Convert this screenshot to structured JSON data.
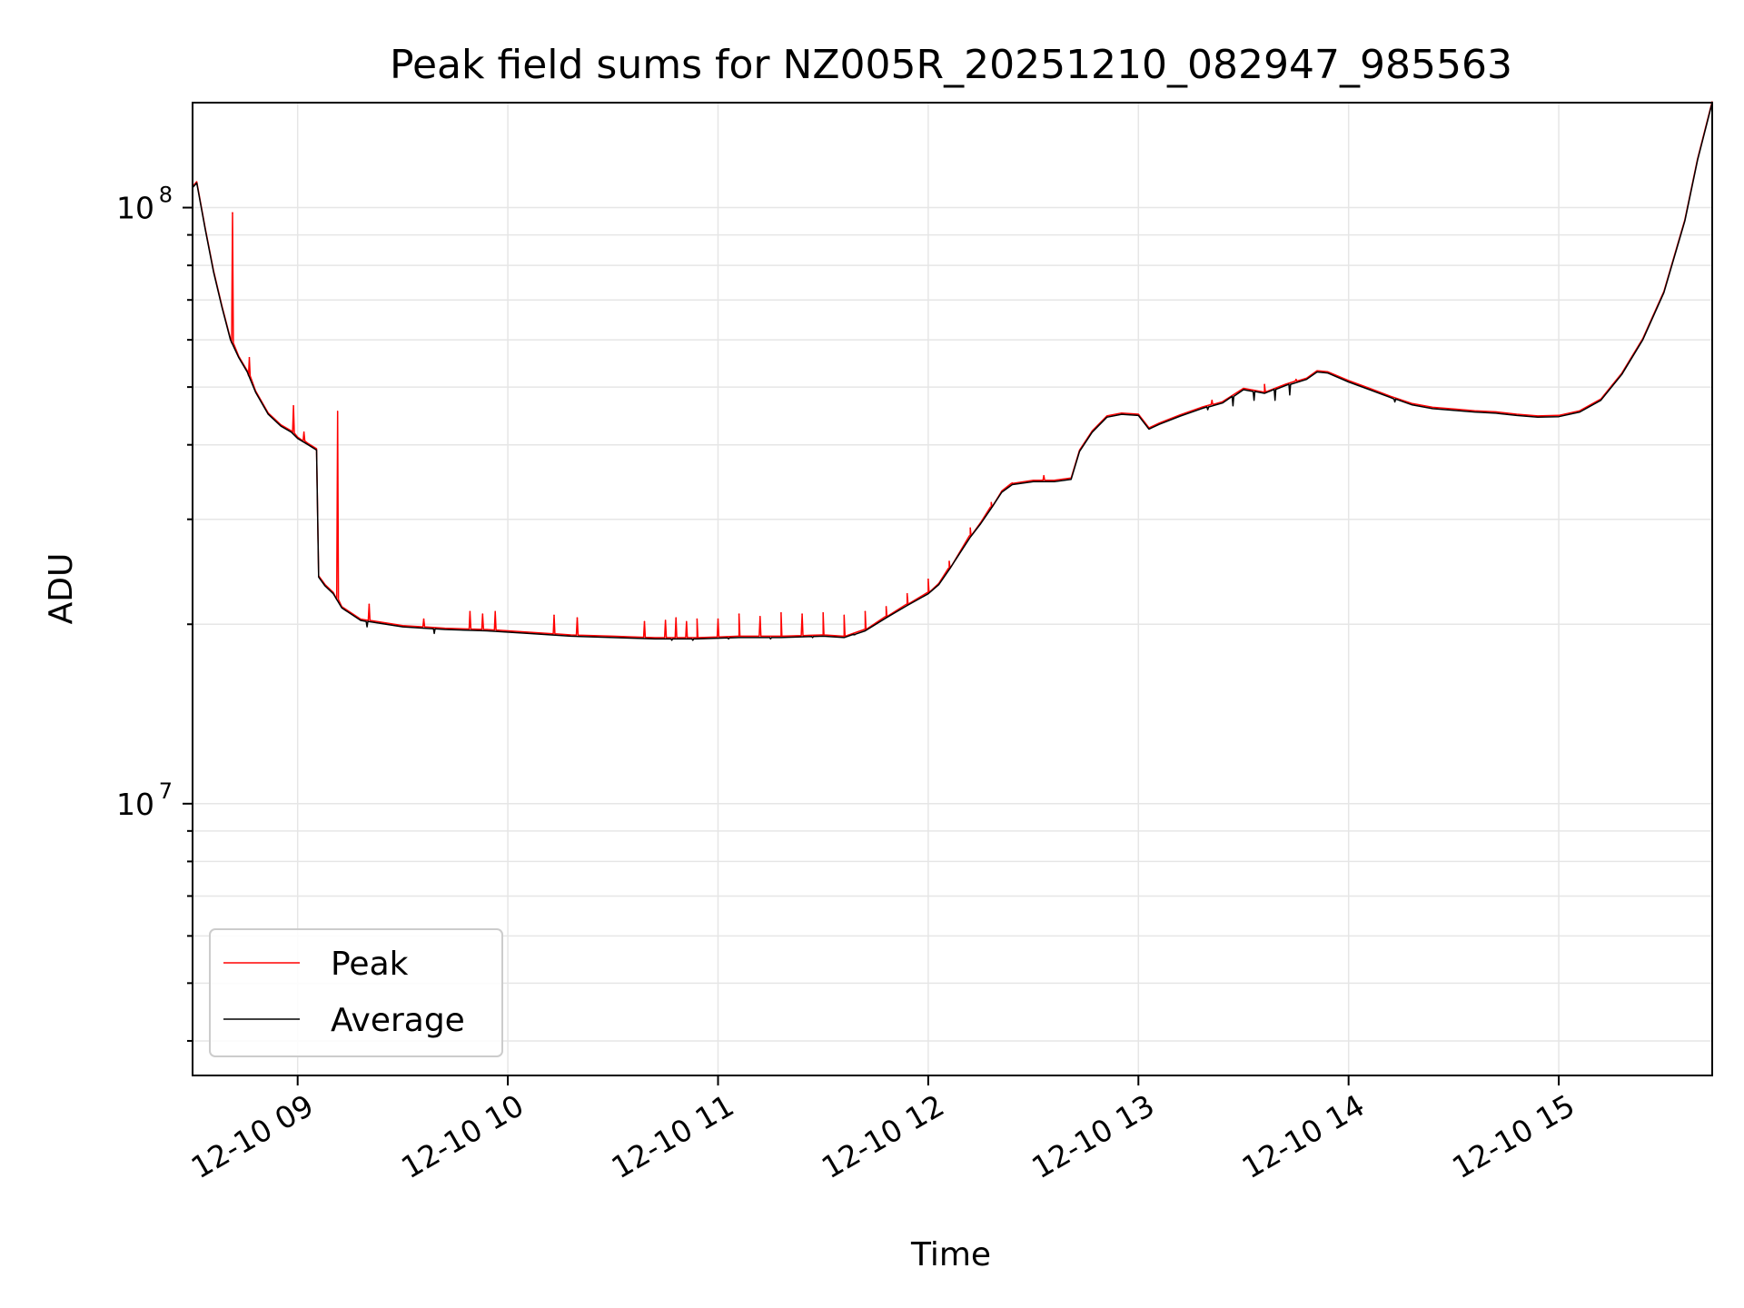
{
  "chart_data": {
    "type": "line",
    "title": "Peak field sums for NZ005R_20251210_082947_985563",
    "xlabel": "Time",
    "ylabel": "ADU",
    "x_unit": "hours (time of day, 2025-12-10)",
    "xlim": [
      8.5,
      15.73
    ],
    "ylim": [
      3500000,
      150000000
    ],
    "yscale": "log",
    "grid": true,
    "legend": {
      "position": "lower-left",
      "entries": [
        "Peak",
        "Average"
      ]
    },
    "x_ticks": [
      {
        "value": 9,
        "label": "12-10 09"
      },
      {
        "value": 10,
        "label": "12-10 10"
      },
      {
        "value": 11,
        "label": "12-10 11"
      },
      {
        "value": 12,
        "label": "12-10 12"
      },
      {
        "value": 13,
        "label": "12-10 13"
      },
      {
        "value": 14,
        "label": "12-10 14"
      },
      {
        "value": 15,
        "label": "12-10 15"
      }
    ],
    "y_ticks": [
      {
        "value": 10000000,
        "base": "10",
        "exp": "7"
      },
      {
        "value": 100000000,
        "base": "10",
        "exp": "8"
      }
    ],
    "series": [
      {
        "name": "Average",
        "color": "#000000",
        "points": [
          [
            8.5,
            108000000
          ],
          [
            8.52,
            110000000
          ],
          [
            8.56,
            92000000
          ],
          [
            8.6,
            78000000
          ],
          [
            8.64,
            68000000
          ],
          [
            8.68,
            60000000
          ],
          [
            8.72,
            56000000
          ],
          [
            8.76,
            53000000
          ],
          [
            8.8,
            49000000
          ],
          [
            8.86,
            45000000
          ],
          [
            8.92,
            43000000
          ],
          [
            8.97,
            42000000
          ],
          [
            9.0,
            41000000
          ],
          [
            9.05,
            40000000
          ],
          [
            9.09,
            39200000
          ],
          [
            9.1,
            24000000
          ],
          [
            9.13,
            23200000
          ],
          [
            9.17,
            22500000
          ],
          [
            9.21,
            21300000
          ],
          [
            9.3,
            20300000
          ],
          [
            9.5,
            19800000
          ],
          [
            9.7,
            19600000
          ],
          [
            9.9,
            19500000
          ],
          [
            10.1,
            19300000
          ],
          [
            10.3,
            19100000
          ],
          [
            10.5,
            19000000
          ],
          [
            10.7,
            18900000
          ],
          [
            10.9,
            18900000
          ],
          [
            11.1,
            19000000
          ],
          [
            11.3,
            19000000
          ],
          [
            11.5,
            19100000
          ],
          [
            11.6,
            19000000
          ],
          [
            11.7,
            19500000
          ],
          [
            11.8,
            20500000
          ],
          [
            11.9,
            21500000
          ],
          [
            12.0,
            22500000
          ],
          [
            12.05,
            23300000
          ],
          [
            12.1,
            24700000
          ],
          [
            12.15,
            26300000
          ],
          [
            12.2,
            28000000
          ],
          [
            12.25,
            29500000
          ],
          [
            12.3,
            31300000
          ],
          [
            12.35,
            33300000
          ],
          [
            12.4,
            34300000
          ],
          [
            12.5,
            34700000
          ],
          [
            12.6,
            34700000
          ],
          [
            12.68,
            35000000
          ],
          [
            12.72,
            39000000
          ],
          [
            12.78,
            42000000
          ],
          [
            12.85,
            44500000
          ],
          [
            12.92,
            45000000
          ],
          [
            13.0,
            44800000
          ],
          [
            13.05,
            42500000
          ],
          [
            13.1,
            43300000
          ],
          [
            13.2,
            44700000
          ],
          [
            13.3,
            46000000
          ],
          [
            13.4,
            47000000
          ],
          [
            13.5,
            49500000
          ],
          [
            13.6,
            48800000
          ],
          [
            13.7,
            50300000
          ],
          [
            13.8,
            51500000
          ],
          [
            13.85,
            53000000
          ],
          [
            13.9,
            52800000
          ],
          [
            14.0,
            51000000
          ],
          [
            14.1,
            49500000
          ],
          [
            14.2,
            48000000
          ],
          [
            14.3,
            46700000
          ],
          [
            14.4,
            46000000
          ],
          [
            14.5,
            45700000
          ],
          [
            14.6,
            45400000
          ],
          [
            14.7,
            45200000
          ],
          [
            14.8,
            44800000
          ],
          [
            14.9,
            44500000
          ],
          [
            15.0,
            44600000
          ],
          [
            15.1,
            45400000
          ],
          [
            15.2,
            47500000
          ],
          [
            15.3,
            52500000
          ],
          [
            15.4,
            60000000
          ],
          [
            15.5,
            72000000
          ],
          [
            15.6,
            95000000
          ],
          [
            15.66,
            120000000
          ],
          [
            15.73,
            150000000
          ]
        ]
      },
      {
        "name": "Peak",
        "color": "#ff0000",
        "spikes": [
          [
            8.69,
            98000000
          ],
          [
            8.77,
            56000000
          ],
          [
            8.98,
            46500000
          ],
          [
            9.03,
            42000000
          ],
          [
            9.19,
            45500000
          ],
          [
            9.34,
            21600000
          ],
          [
            9.6,
            20400000
          ],
          [
            9.82,
            21000000
          ],
          [
            9.88,
            20800000
          ],
          [
            9.94,
            21000000
          ],
          [
            10.22,
            20700000
          ],
          [
            10.33,
            20500000
          ],
          [
            10.65,
            20200000
          ],
          [
            10.75,
            20300000
          ],
          [
            10.8,
            20500000
          ],
          [
            10.85,
            20200000
          ],
          [
            10.9,
            20400000
          ],
          [
            11.0,
            20400000
          ],
          [
            11.1,
            20800000
          ],
          [
            11.2,
            20600000
          ],
          [
            11.3,
            20900000
          ],
          [
            11.4,
            20800000
          ],
          [
            11.5,
            20900000
          ],
          [
            11.6,
            20700000
          ],
          [
            11.7,
            21000000
          ],
          [
            11.8,
            21400000
          ],
          [
            11.9,
            22500000
          ],
          [
            12.0,
            23800000
          ],
          [
            12.1,
            25500000
          ],
          [
            12.2,
            29000000
          ],
          [
            12.3,
            32000000
          ],
          [
            12.4,
            34500000
          ],
          [
            12.55,
            35500000
          ],
          [
            13.35,
            47500000
          ],
          [
            13.6,
            50500000
          ],
          [
            13.75,
            51500000
          ]
        ]
      }
    ],
    "average_dips": [
      [
        9.33,
        19800000
      ],
      [
        9.65,
        19300000
      ],
      [
        10.78,
        18800000
      ],
      [
        10.88,
        18800000
      ],
      [
        11.05,
        18900000
      ],
      [
        11.25,
        18900000
      ],
      [
        11.45,
        19000000
      ],
      [
        11.65,
        19200000
      ],
      [
        13.33,
        45800000
      ],
      [
        13.45,
        46500000
      ],
      [
        13.55,
        47500000
      ],
      [
        13.65,
        47500000
      ],
      [
        13.72,
        48500000
      ],
      [
        14.22,
        47200000
      ]
    ]
  }
}
